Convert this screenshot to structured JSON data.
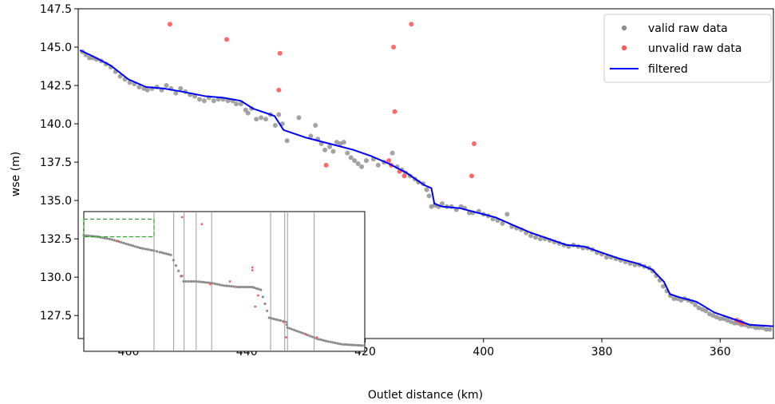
{
  "chart_data": {
    "type": "scatter",
    "xlabel": "Outlet distance (km)",
    "ylabel": "wse (m)",
    "xlim": [
      468.5,
      351
    ],
    "ylim": [
      126,
      147.5
    ],
    "x_ticks": [
      460,
      440,
      420,
      400,
      380,
      360
    ],
    "y_ticks": [
      127.5,
      130.0,
      132.5,
      135.0,
      137.5,
      140.0,
      142.5,
      145.0,
      147.5
    ],
    "grid": false,
    "legend_position": "top-right",
    "colors": {
      "valid": "#8c8c8c",
      "unvalid": "#ff5a5a",
      "filtered": "#0000ff",
      "inset_box": "#2ca02c"
    },
    "series": [
      {
        "name": "valid raw data",
        "kind": "scatter",
        "points": [
          [
            467.8,
            144.7
          ],
          [
            467.2,
            144.5
          ],
          [
            466.6,
            144.3
          ],
          [
            466.0,
            144.3
          ],
          [
            465.4,
            144.2
          ],
          [
            464.6,
            144.1
          ],
          [
            463.8,
            143.9
          ],
          [
            463.0,
            143.7
          ],
          [
            462.2,
            143.4
          ],
          [
            461.4,
            143.1
          ],
          [
            460.6,
            142.9
          ],
          [
            459.8,
            142.7
          ],
          [
            459.0,
            142.6
          ],
          [
            458.2,
            142.4
          ],
          [
            457.4,
            142.3
          ],
          [
            456.8,
            142.2
          ],
          [
            456.0,
            142.3
          ],
          [
            455.2,
            142.4
          ],
          [
            454.4,
            142.2
          ],
          [
            453.6,
            142.5
          ],
          [
            452.8,
            142.3
          ],
          [
            452.0,
            142.0
          ],
          [
            451.2,
            142.3
          ],
          [
            450.4,
            142.1
          ],
          [
            449.6,
            141.9
          ],
          [
            448.8,
            141.8
          ],
          [
            448.0,
            141.6
          ],
          [
            447.2,
            141.5
          ],
          [
            446.4,
            141.7
          ],
          [
            445.6,
            141.5
          ],
          [
            444.8,
            141.6
          ],
          [
            444.0,
            141.6
          ],
          [
            443.2,
            141.5
          ],
          [
            442.4,
            141.5
          ],
          [
            441.8,
            141.3
          ],
          [
            441.0,
            141.3
          ],
          [
            440.2,
            140.9
          ],
          [
            439.8,
            140.7
          ],
          [
            439.2,
            141.0
          ],
          [
            438.4,
            140.3
          ],
          [
            437.6,
            140.4
          ],
          [
            436.8,
            140.3
          ],
          [
            436.0,
            140.6
          ],
          [
            435.2,
            139.9
          ],
          [
            434.6,
            140.6
          ],
          [
            434.0,
            140.0
          ],
          [
            433.2,
            138.9
          ],
          [
            431.2,
            140.4
          ],
          [
            429.2,
            139.2
          ],
          [
            428.4,
            139.9
          ],
          [
            428.0,
            139.0
          ],
          [
            427.4,
            138.7
          ],
          [
            426.8,
            138.3
          ],
          [
            426.0,
            138.5
          ],
          [
            425.4,
            138.2
          ],
          [
            424.8,
            138.8
          ],
          [
            424.2,
            138.7
          ],
          [
            423.6,
            138.8
          ],
          [
            423.0,
            138.1
          ],
          [
            422.4,
            137.8
          ],
          [
            421.8,
            137.6
          ],
          [
            421.2,
            137.4
          ],
          [
            420.6,
            137.2
          ],
          [
            419.8,
            137.6
          ],
          [
            418.6,
            137.7
          ],
          [
            417.8,
            137.3
          ],
          [
            416.8,
            137.5
          ],
          [
            415.4,
            138.1
          ],
          [
            414.6,
            137.2
          ],
          [
            413.8,
            137.0
          ],
          [
            413.2,
            136.8
          ],
          [
            412.4,
            136.6
          ],
          [
            411.6,
            136.4
          ],
          [
            411.0,
            136.2
          ],
          [
            410.2,
            136.1
          ],
          [
            409.6,
            135.7
          ],
          [
            409.2,
            135.3
          ],
          [
            408.8,
            134.6
          ],
          [
            408.2,
            134.7
          ],
          [
            407.6,
            134.6
          ],
          [
            407.0,
            134.8
          ],
          [
            406.2,
            134.6
          ],
          [
            405.4,
            134.6
          ],
          [
            404.6,
            134.4
          ],
          [
            403.8,
            134.6
          ],
          [
            403.2,
            134.5
          ],
          [
            402.4,
            134.2
          ],
          [
            401.8,
            134.2
          ],
          [
            400.8,
            134.3
          ],
          [
            400.0,
            134.1
          ],
          [
            399.2,
            134.0
          ],
          [
            398.4,
            133.8
          ],
          [
            397.6,
            133.7
          ],
          [
            396.8,
            133.5
          ],
          [
            396.0,
            134.1
          ],
          [
            395.2,
            133.3
          ],
          [
            394.4,
            133.2
          ],
          [
            393.6,
            133.1
          ],
          [
            392.8,
            132.9
          ],
          [
            392.0,
            132.7
          ],
          [
            391.2,
            132.6
          ],
          [
            390.4,
            132.5
          ],
          [
            389.6,
            132.5
          ],
          [
            388.8,
            132.4
          ],
          [
            388.0,
            132.3
          ],
          [
            387.2,
            132.2
          ],
          [
            386.4,
            132.1
          ],
          [
            385.6,
            132.0
          ],
          [
            384.8,
            132.1
          ],
          [
            384.0,
            132.0
          ],
          [
            383.2,
            131.9
          ],
          [
            382.4,
            131.9
          ],
          [
            381.6,
            131.8
          ],
          [
            380.8,
            131.6
          ],
          [
            380.0,
            131.5
          ],
          [
            379.2,
            131.3
          ],
          [
            378.4,
            131.3
          ],
          [
            377.6,
            131.2
          ],
          [
            376.8,
            131.1
          ],
          [
            376.0,
            131.0
          ],
          [
            375.2,
            130.9
          ],
          [
            374.4,
            130.8
          ],
          [
            373.6,
            130.8
          ],
          [
            372.8,
            130.7
          ],
          [
            372.0,
            130.6
          ],
          [
            371.4,
            130.4
          ],
          [
            370.8,
            130.1
          ],
          [
            370.2,
            129.8
          ],
          [
            369.6,
            129.4
          ],
          [
            369.0,
            129.1
          ],
          [
            368.4,
            128.8
          ],
          [
            367.8,
            128.6
          ],
          [
            367.2,
            128.6
          ],
          [
            366.6,
            128.5
          ],
          [
            366.0,
            128.6
          ],
          [
            365.4,
            128.5
          ],
          [
            364.8,
            128.4
          ],
          [
            364.2,
            128.2
          ],
          [
            363.6,
            128.0
          ],
          [
            363.0,
            127.9
          ],
          [
            362.4,
            127.8
          ],
          [
            361.8,
            127.6
          ],
          [
            361.2,
            127.5
          ],
          [
            360.6,
            127.4
          ],
          [
            360.0,
            127.3
          ],
          [
            359.4,
            127.3
          ],
          [
            358.8,
            127.2
          ],
          [
            358.2,
            127.1
          ],
          [
            357.6,
            127.0
          ],
          [
            357.0,
            127.0
          ],
          [
            356.4,
            126.9
          ],
          [
            355.8,
            126.9
          ],
          [
            355.2,
            126.8
          ],
          [
            354.6,
            126.8
          ],
          [
            354.0,
            126.7
          ],
          [
            353.4,
            126.7
          ],
          [
            352.8,
            126.7
          ],
          [
            352.2,
            126.6
          ],
          [
            351.6,
            126.6
          ]
        ]
      },
      {
        "name": "unvalid raw data",
        "kind": "scatter",
        "points": [
          [
            453.0,
            146.5
          ],
          [
            443.4,
            145.5
          ],
          [
            434.4,
            144.6
          ],
          [
            434.6,
            142.2
          ],
          [
            426.6,
            137.3
          ],
          [
            415.2,
            145.0
          ],
          [
            415.0,
            140.8
          ],
          [
            412.2,
            146.5
          ],
          [
            416.0,
            137.6
          ],
          [
            415.6,
            137.3
          ],
          [
            414.2,
            136.9
          ],
          [
            413.4,
            136.6
          ],
          [
            401.6,
            138.7
          ],
          [
            402.0,
            136.6
          ],
          [
            357.2,
            127.2
          ],
          [
            356.6,
            127.1
          ],
          [
            356.2,
            127.0
          ]
        ]
      },
      {
        "name": "filtered",
        "kind": "line",
        "points": [
          [
            468.2,
            144.8
          ],
          [
            466.0,
            144.4
          ],
          [
            463.0,
            143.8
          ],
          [
            460.0,
            142.9
          ],
          [
            457.0,
            142.4
          ],
          [
            454.0,
            142.3
          ],
          [
            451.0,
            142.1
          ],
          [
            447.0,
            141.8
          ],
          [
            444.0,
            141.7
          ],
          [
            441.0,
            141.5
          ],
          [
            439.0,
            141.0
          ],
          [
            436.0,
            140.6
          ],
          [
            435.3,
            140.5
          ],
          [
            433.8,
            139.6
          ],
          [
            430.0,
            139.1
          ],
          [
            426.0,
            138.7
          ],
          [
            422.0,
            138.3
          ],
          [
            419.0,
            137.9
          ],
          [
            416.0,
            137.4
          ],
          [
            413.0,
            136.8
          ],
          [
            410.0,
            136.0
          ],
          [
            408.8,
            135.8
          ],
          [
            408.3,
            134.8
          ],
          [
            407.0,
            134.6
          ],
          [
            404.0,
            134.5
          ],
          [
            401.0,
            134.2
          ],
          [
            398.0,
            133.9
          ],
          [
            395.0,
            133.4
          ],
          [
            392.0,
            132.9
          ],
          [
            389.0,
            132.5
          ],
          [
            386.0,
            132.1
          ],
          [
            383.0,
            132.0
          ],
          [
            380.0,
            131.6
          ],
          [
            377.0,
            131.2
          ],
          [
            374.0,
            130.9
          ],
          [
            371.5,
            130.5
          ],
          [
            369.5,
            129.7
          ],
          [
            368.5,
            128.9
          ],
          [
            367.0,
            128.7
          ],
          [
            364.0,
            128.4
          ],
          [
            361.0,
            127.7
          ],
          [
            358.0,
            127.3
          ],
          [
            355.0,
            126.9
          ],
          [
            351.0,
            126.8
          ]
        ]
      }
    ],
    "inset": {
      "description_series": [
        "valid raw data",
        "unvalid raw data"
      ],
      "vertical_lines_frac": [
        0.25,
        0.32,
        0.357,
        0.4,
        0.455,
        0.665,
        0.715,
        0.725,
        0.82
      ],
      "valid_profile_frac": [
        [
          0.0,
          0.17
        ],
        [
          0.05,
          0.18
        ],
        [
          0.1,
          0.2
        ],
        [
          0.15,
          0.23
        ],
        [
          0.2,
          0.26
        ],
        [
          0.25,
          0.28
        ],
        [
          0.27,
          0.29
        ],
        [
          0.31,
          0.31
        ],
        [
          0.355,
          0.5
        ],
        [
          0.4,
          0.5
        ],
        [
          0.45,
          0.51
        ],
        [
          0.5,
          0.53
        ],
        [
          0.55,
          0.54
        ],
        [
          0.6,
          0.54
        ],
        [
          0.63,
          0.56
        ],
        [
          0.66,
          0.76
        ],
        [
          0.7,
          0.78
        ],
        [
          0.72,
          0.79
        ],
        [
          0.725,
          0.83
        ],
        [
          0.78,
          0.87
        ],
        [
          0.83,
          0.91
        ],
        [
          0.87,
          0.93
        ],
        [
          0.92,
          0.95
        ],
        [
          1.0,
          0.96
        ]
      ],
      "unvalid_frac": [
        [
          0.12,
          0.21
        ],
        [
          0.35,
          0.04
        ],
        [
          0.42,
          0.09
        ],
        [
          0.35,
          0.46
        ],
        [
          0.45,
          0.52
        ],
        [
          0.52,
          0.5
        ],
        [
          0.6,
          0.4
        ],
        [
          0.6,
          0.42
        ],
        [
          0.62,
          0.6
        ],
        [
          0.61,
          0.68
        ],
        [
          0.71,
          0.79
        ],
        [
          0.72,
          0.9
        ],
        [
          0.79,
          0.88
        ],
        [
          0.83,
          0.9
        ]
      ],
      "zoom_box_frac": [
        0.0,
        0.18,
        0.25,
        0.3
      ]
    }
  }
}
